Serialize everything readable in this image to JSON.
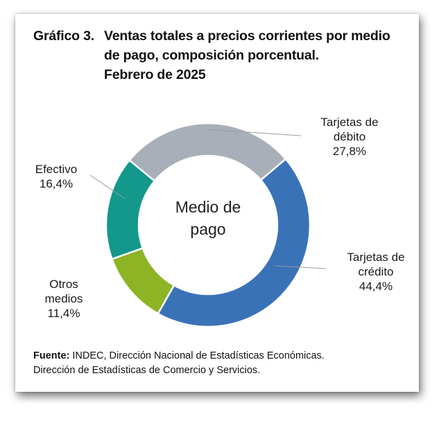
{
  "title": {
    "prefix": "Gráfico 3.",
    "line1": "Ventas totales a precios corrientes por medio",
    "line2": "de pago, composición porcentual.",
    "line3": "Febrero de 2025"
  },
  "center_label": {
    "line1": "Medio de",
    "line2": "pago"
  },
  "source": {
    "label": "Fuente:",
    "line1": "INDEC, Dirección Nacional de Estadísticas Económicas.",
    "line2": "Dirección de Estadísticas de Comercio y Servicios."
  },
  "chart_data": {
    "type": "pie",
    "donut": true,
    "unit": "%",
    "slices": [
      {
        "id": "debito",
        "name": "Tarjetas de débito",
        "name_line1": "Tarjetas de",
        "name_line2": "débito",
        "value": 27.8,
        "value_label": "27,8%",
        "color": "#A9AFB8"
      },
      {
        "id": "credito",
        "name": "Tarjetas de crédito",
        "name_line1": "Tarjetas de",
        "name_line2": "crédito",
        "value": 44.4,
        "value_label": "44,4%",
        "color": "#3A72B8"
      },
      {
        "id": "otros",
        "name": "Otros medios",
        "name_line1": "Otros",
        "name_line2": "medios",
        "value": 11.4,
        "value_label": "11,4%",
        "color": "#8DB425"
      },
      {
        "id": "efectivo",
        "name": "Efectivo",
        "name_line1": "Efectivo",
        "name_line2": "",
        "value": 16.4,
        "value_label": "16,4%",
        "color": "#13988B"
      }
    ]
  }
}
